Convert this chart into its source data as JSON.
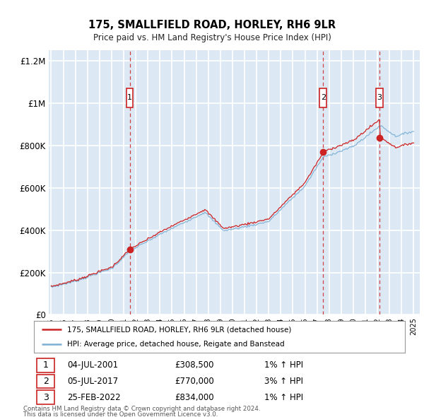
{
  "title": "175, SMALLFIELD ROAD, HORLEY, RH6 9LR",
  "subtitle": "Price paid vs. HM Land Registry's House Price Index (HPI)",
  "legend_line1": "175, SMALLFIELD ROAD, HORLEY, RH6 9LR (detached house)",
  "legend_line2": "HPI: Average price, detached house, Reigate and Banstead",
  "footer1": "Contains HM Land Registry data © Crown copyright and database right 2024.",
  "footer2": "This data is licensed under the Open Government Licence v3.0.",
  "transactions": [
    {
      "num": 1,
      "date": "04-JUL-2001",
      "price": "£308,500",
      "hpi": "1% ↑ HPI"
    },
    {
      "num": 2,
      "date": "05-JUL-2017",
      "price": "£770,000",
      "hpi": "3% ↑ HPI"
    },
    {
      "num": 3,
      "date": "25-FEB-2022",
      "price": "£834,000",
      "hpi": "1% ↑ HPI"
    }
  ],
  "transaction_years": [
    2001.5,
    2017.5,
    2022.16
  ],
  "transaction_prices": [
    308500,
    770000,
    834000
  ],
  "hpi_color": "#7bafd4",
  "price_color": "#cc2222",
  "background_color": "#ffffff",
  "plot_bg_color": "#dce9f5",
  "grid_color": "#ffffff",
  "ylim": [
    0,
    1250000
  ],
  "xlim_start": 1994.8,
  "xlim_end": 2025.5,
  "yticks": [
    0,
    200000,
    400000,
    600000,
    800000,
    1000000,
    1200000
  ],
  "ytick_labels": [
    "£0",
    "£200K",
    "£400K",
    "£600K",
    "£800K",
    "£1M",
    "£1.2M"
  ]
}
